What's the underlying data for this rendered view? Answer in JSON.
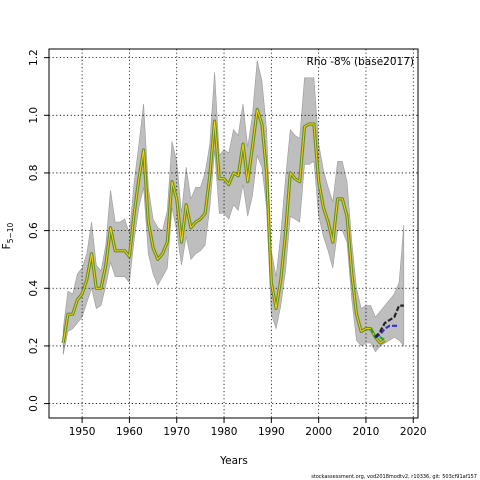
{
  "chart_data": {
    "type": "line",
    "annotation": "Rho -8% (base2017)",
    "xlabel": "Years",
    "ylabel_main": "F",
    "ylabel_sub": "5−10",
    "footer": "stockassessment.org,  vod2018modtv2,  r10336,  git: 503cf91af157",
    "xlim": [
      1943,
      2021
    ],
    "ylim": [
      -0.05,
      1.23
    ],
    "x_ticks": [
      1950,
      1960,
      1970,
      1980,
      1990,
      2000,
      2010,
      2020
    ],
    "y_ticks": [
      "0.0",
      "0.2",
      "0.4",
      "0.6",
      "0.8",
      "1.0",
      "1.2"
    ],
    "grid": true,
    "colors": {
      "band": "#bebebe",
      "estimate": "#6b8e23",
      "estimate_core": "#ffd700",
      "retro1": "#2ca02c",
      "retro2": "#3333cc",
      "retro3": "#222222"
    },
    "band": {
      "x": [
        1946,
        1947,
        1948,
        1949,
        1950,
        1951,
        1952,
        1953,
        1954,
        1955,
        1956,
        1957,
        1958,
        1959,
        1960,
        1961,
        1962,
        1963,
        1964,
        1965,
        1966,
        1967,
        1968,
        1969,
        1970,
        1971,
        1972,
        1973,
        1974,
        1975,
        1976,
        1977,
        1978,
        1979,
        1980,
        1981,
        1982,
        1983,
        1984,
        1985,
        1986,
        1987,
        1988,
        1989,
        1990,
        1991,
        1992,
        1993,
        1994,
        1995,
        1996,
        1997,
        1998,
        1999,
        2000,
        2001,
        2002,
        2003,
        2004,
        2005,
        2006,
        2007,
        2008,
        2009,
        2010,
        2011,
        2012,
        2013,
        2014,
        2015,
        2016,
        2017,
        2018
      ],
      "upper": [
        0.26,
        0.39,
        0.38,
        0.45,
        0.47,
        0.52,
        0.63,
        0.48,
        0.46,
        0.55,
        0.74,
        0.63,
        0.63,
        0.64,
        0.59,
        0.77,
        0.9,
        1.04,
        0.75,
        0.64,
        0.61,
        0.6,
        0.67,
        0.91,
        0.84,
        0.66,
        0.82,
        0.71,
        0.75,
        0.75,
        0.8,
        0.9,
        1.15,
        0.86,
        0.88,
        0.87,
        0.95,
        0.93,
        1.04,
        0.89,
        1.0,
        1.19,
        1.12,
        0.95,
        0.53,
        0.44,
        0.59,
        0.78,
        0.95,
        0.93,
        0.92,
        1.13,
        1.13,
        1.13,
        0.9,
        0.81,
        0.75,
        0.7,
        0.84,
        0.84,
        0.77,
        0.56,
        0.4,
        0.33,
        0.34,
        0.34,
        0.3,
        0.32,
        0.34,
        0.36,
        0.38,
        0.42,
        0.62
      ],
      "lower": [
        0.17,
        0.25,
        0.26,
        0.28,
        0.3,
        0.35,
        0.4,
        0.33,
        0.34,
        0.41,
        0.49,
        0.44,
        0.44,
        0.44,
        0.42,
        0.57,
        0.68,
        0.75,
        0.52,
        0.45,
        0.41,
        0.44,
        0.47,
        0.68,
        0.6,
        0.48,
        0.58,
        0.5,
        0.52,
        0.53,
        0.55,
        0.68,
        0.88,
        0.66,
        0.66,
        0.64,
        0.69,
        0.67,
        0.76,
        0.65,
        0.72,
        0.86,
        0.82,
        0.68,
        0.31,
        0.26,
        0.34,
        0.46,
        0.65,
        0.64,
        0.63,
        0.83,
        0.83,
        0.84,
        0.65,
        0.58,
        0.53,
        0.47,
        0.6,
        0.6,
        0.56,
        0.36,
        0.22,
        0.2,
        0.21,
        0.21,
        0.18,
        0.2,
        0.21,
        0.22,
        0.23,
        0.22,
        0.2
      ]
    },
    "series": [
      {
        "x": [
          1946,
          1947,
          1948,
          1949,
          1950,
          1951,
          1952,
          1953,
          1954,
          1955,
          1956,
          1957,
          1958,
          1959,
          1960,
          1961,
          1962,
          1963,
          1964,
          1965,
          1966,
          1967,
          1968,
          1969,
          1970,
          1971,
          1972,
          1973,
          1974,
          1975,
          1976,
          1977,
          1978,
          1979,
          1980,
          1981,
          1982,
          1983,
          1984,
          1985,
          1986,
          1987,
          1988,
          1989,
          1990,
          1991,
          1992,
          1993,
          1994,
          1995,
          1996,
          1997,
          1998,
          1999,
          2000,
          2001,
          2002,
          2003,
          2004,
          2005,
          2006,
          2007,
          2008,
          2009,
          2010,
          2011,
          2012,
          2013,
          2014
        ],
        "y": [
          0.21,
          0.31,
          0.31,
          0.36,
          0.38,
          0.43,
          0.52,
          0.4,
          0.4,
          0.48,
          0.61,
          0.53,
          0.53,
          0.53,
          0.51,
          0.66,
          0.78,
          0.88,
          0.63,
          0.54,
          0.5,
          0.52,
          0.56,
          0.77,
          0.71,
          0.56,
          0.69,
          0.61,
          0.63,
          0.64,
          0.66,
          0.79,
          0.98,
          0.78,
          0.78,
          0.76,
          0.8,
          0.79,
          0.9,
          0.77,
          0.89,
          1.02,
          0.97,
          0.8,
          0.42,
          0.33,
          0.43,
          0.59,
          0.8,
          0.78,
          0.77,
          0.96,
          0.97,
          0.97,
          0.77,
          0.68,
          0.63,
          0.56,
          0.71,
          0.71,
          0.65,
          0.45,
          0.31,
          0.25,
          0.26,
          0.26,
          0.23,
          0.21,
          0.22
        ]
      },
      {
        "x": [
          2011,
          2012,
          2013,
          2014
        ],
        "y": [
          0.26,
          0.23,
          0.23,
          0.22
        ]
      },
      {
        "x": [
          2012,
          2013,
          2014,
          2015,
          2016,
          2017
        ],
        "y": [
          0.23,
          0.24,
          0.26,
          0.27,
          0.27,
          0.27
        ]
      },
      {
        "x": [
          2012,
          2013,
          2014,
          2015,
          2016,
          2017,
          2018
        ],
        "y": [
          0.23,
          0.25,
          0.28,
          0.29,
          0.3,
          0.34,
          0.34
        ]
      }
    ]
  }
}
